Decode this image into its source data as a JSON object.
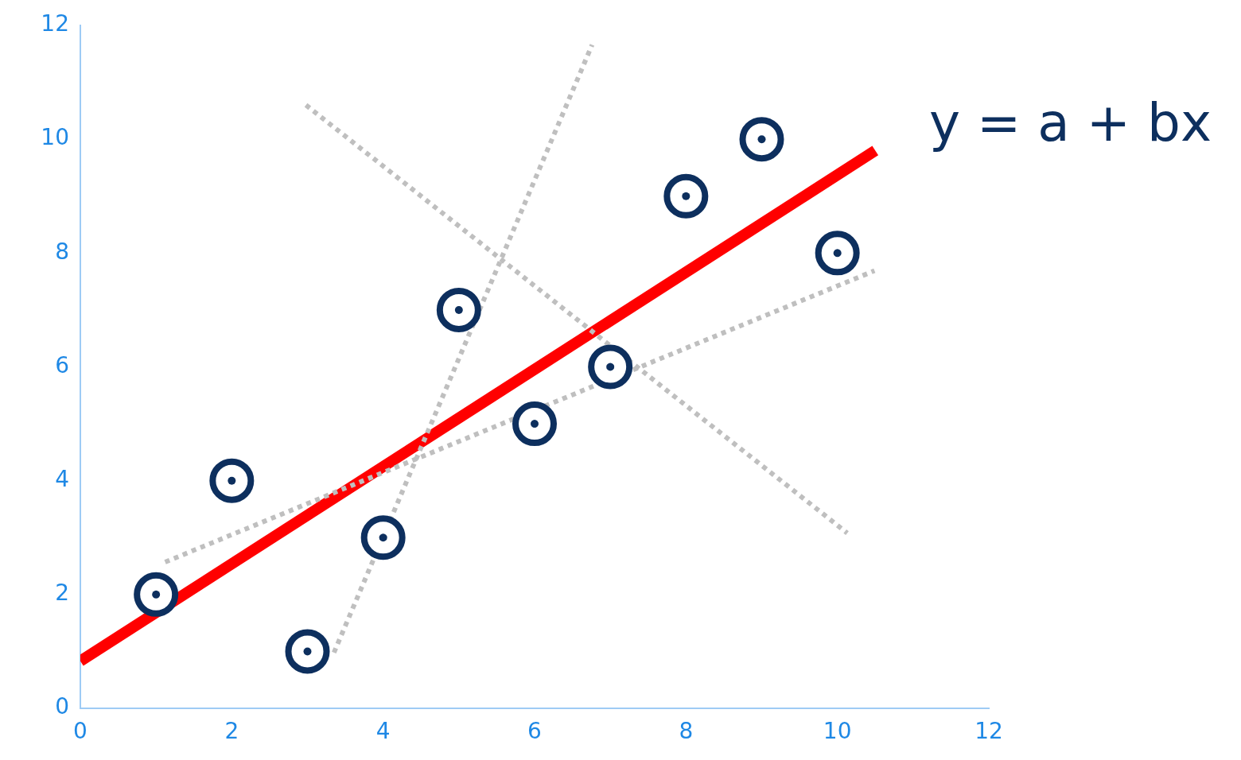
{
  "chart_data": {
    "type": "scatter",
    "xlim": [
      0,
      12
    ],
    "xticks": [
      0,
      2,
      4,
      6,
      8,
      10,
      12
    ],
    "ylim": [
      0,
      12
    ],
    "yticks": [
      0,
      2,
      4,
      6,
      8,
      10,
      12
    ],
    "grid": false,
    "legend": false,
    "marker": "circle",
    "annotations": [
      "y = a + bx"
    ],
    "series": [
      {
        "type": "line",
        "marker": "none",
        "color": "#bfbfbf",
        "line_style": "dotted",
        "x": [
          1.12,
          10.49
        ],
        "values": [
          2.57,
          7.69
        ]
      },
      {
        "type": "line",
        "marker": "none",
        "color": "#bfbfbf",
        "line_style": "dotted",
        "x": [
          2.98,
          10.13
        ],
        "values": [
          10.6,
          3.08
        ]
      },
      {
        "type": "line",
        "marker": "none",
        "color": "#bfbfbf",
        "line_style": "dotted",
        "x": [
          3.35,
          6.76
        ],
        "values": [
          0.98,
          11.66
        ]
      },
      {
        "type": "line",
        "marker": "none",
        "color": "#ff0000",
        "line_style": "solid",
        "x": [
          0,
          10.5
        ],
        "values": [
          0.83,
          9.8
        ]
      },
      {
        "color": "#0d2f5e",
        "x": [
          1,
          2,
          3,
          4,
          5,
          6,
          7,
          8,
          9,
          10
        ],
        "values": [
          2,
          4,
          1,
          3,
          7,
          5,
          6,
          9,
          10,
          8
        ]
      }
    ]
  }
}
